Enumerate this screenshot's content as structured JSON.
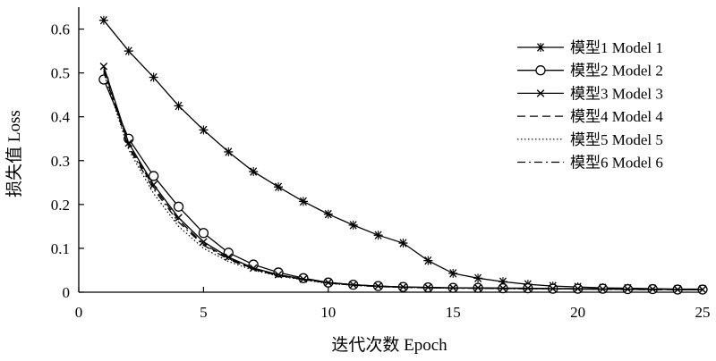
{
  "chart_data": {
    "type": "line",
    "xlabel": "迭代次数 Epoch",
    "ylabel": "损失值 Loss",
    "xlim": [
      0,
      25
    ],
    "ylim": [
      0,
      0.65
    ],
    "xticks": [
      0,
      5,
      10,
      15,
      20,
      25
    ],
    "yticks": [
      0,
      0.1,
      0.2,
      0.3,
      0.4,
      0.5,
      0.6
    ],
    "xtick_labels": [
      "0",
      "5",
      "10",
      "15",
      "20",
      "25"
    ],
    "ytick_labels": [
      "0",
      "0.1",
      "0.2",
      "0.3",
      "0.4",
      "0.5",
      "0.6"
    ],
    "grid": false,
    "legend_position": "top-right",
    "x": [
      1,
      2,
      3,
      4,
      5,
      6,
      7,
      8,
      9,
      10,
      11,
      12,
      13,
      14,
      15,
      16,
      17,
      18,
      19,
      20,
      21,
      22,
      23,
      24,
      25
    ],
    "series": [
      {
        "name": "模型1 Model 1",
        "marker": "star",
        "dash": "solid",
        "values": [
          0.62,
          0.55,
          0.49,
          0.425,
          0.37,
          0.32,
          0.275,
          0.24,
          0.207,
          0.178,
          0.153,
          0.13,
          0.112,
          0.072,
          0.043,
          0.032,
          0.024,
          0.018,
          0.014,
          0.012,
          0.01,
          0.009,
          0.008,
          0.007,
          0.007
        ]
      },
      {
        "name": "模型2 Model 2",
        "marker": "circle",
        "dash": "solid",
        "values": [
          0.485,
          0.35,
          0.265,
          0.195,
          0.135,
          0.09,
          0.063,
          0.045,
          0.032,
          0.022,
          0.017,
          0.014,
          0.012,
          0.011,
          0.01,
          0.01,
          0.009,
          0.009,
          0.008,
          0.008,
          0.008,
          0.007,
          0.007,
          0.006,
          0.006
        ]
      },
      {
        "name": "模型3 Model 3",
        "marker": "x",
        "dash": "solid",
        "values": [
          0.515,
          0.34,
          0.245,
          0.17,
          0.115,
          0.08,
          0.055,
          0.04,
          0.03,
          0.022,
          0.017,
          0.014,
          0.012,
          0.011,
          0.01,
          0.01,
          0.009,
          0.009,
          0.008,
          0.008,
          0.007,
          0.007,
          0.007,
          0.006,
          0.006
        ]
      },
      {
        "name": "模型4 Model 4",
        "marker": "none",
        "dash": "dashed",
        "values": [
          0.51,
          0.335,
          0.24,
          0.165,
          0.11,
          0.077,
          0.053,
          0.039,
          0.029,
          0.021,
          0.016,
          0.013,
          0.011,
          0.01,
          0.01,
          0.009,
          0.009,
          0.008,
          0.008,
          0.007,
          0.007,
          0.007,
          0.006,
          0.006,
          0.006
        ]
      },
      {
        "name": "模型5 Model 5",
        "marker": "none",
        "dash": "dotted",
        "values": [
          0.5,
          0.325,
          0.225,
          0.15,
          0.1,
          0.07,
          0.05,
          0.037,
          0.028,
          0.02,
          0.016,
          0.013,
          0.011,
          0.01,
          0.009,
          0.009,
          0.008,
          0.008,
          0.008,
          0.007,
          0.007,
          0.006,
          0.006,
          0.006,
          0.006
        ]
      },
      {
        "name": "模型6 Model 6",
        "marker": "none",
        "dash": "dashdot",
        "values": [
          0.505,
          0.33,
          0.235,
          0.16,
          0.107,
          0.075,
          0.052,
          0.038,
          0.029,
          0.021,
          0.016,
          0.013,
          0.011,
          0.01,
          0.009,
          0.009,
          0.008,
          0.008,
          0.008,
          0.007,
          0.007,
          0.006,
          0.006,
          0.006,
          0.006
        ]
      }
    ]
  }
}
